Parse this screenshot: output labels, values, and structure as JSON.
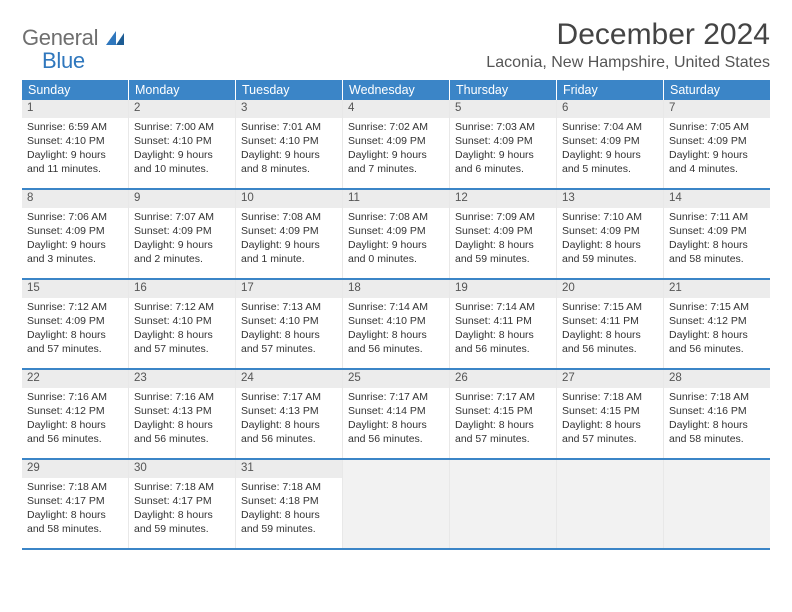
{
  "logo": {
    "line1": "General",
    "line2": "Blue"
  },
  "title": {
    "month": "December 2024",
    "location": "Laconia, New Hampshire, United States"
  },
  "colors": {
    "header_bg": "#3b85c7",
    "header_text": "#ffffff",
    "row_border": "#3b85c7",
    "daynum_bg": "#ececec",
    "daynum_text": "#555555",
    "cell_border": "#e8e8e8",
    "empty_bg": "#f2f2f2",
    "body_text": "#333333",
    "logo_gray": "#6f6f6f",
    "logo_blue": "#2f77bd"
  },
  "dow": [
    "Sunday",
    "Monday",
    "Tuesday",
    "Wednesday",
    "Thursday",
    "Friday",
    "Saturday"
  ],
  "weeks": [
    [
      {
        "num": "1",
        "sunrise": "Sunrise: 6:59 AM",
        "sunset": "Sunset: 4:10 PM",
        "daylight": "Daylight: 9 hours and 11 minutes."
      },
      {
        "num": "2",
        "sunrise": "Sunrise: 7:00 AM",
        "sunset": "Sunset: 4:10 PM",
        "daylight": "Daylight: 9 hours and 10 minutes."
      },
      {
        "num": "3",
        "sunrise": "Sunrise: 7:01 AM",
        "sunset": "Sunset: 4:10 PM",
        "daylight": "Daylight: 9 hours and 8 minutes."
      },
      {
        "num": "4",
        "sunrise": "Sunrise: 7:02 AM",
        "sunset": "Sunset: 4:09 PM",
        "daylight": "Daylight: 9 hours and 7 minutes."
      },
      {
        "num": "5",
        "sunrise": "Sunrise: 7:03 AM",
        "sunset": "Sunset: 4:09 PM",
        "daylight": "Daylight: 9 hours and 6 minutes."
      },
      {
        "num": "6",
        "sunrise": "Sunrise: 7:04 AM",
        "sunset": "Sunset: 4:09 PM",
        "daylight": "Daylight: 9 hours and 5 minutes."
      },
      {
        "num": "7",
        "sunrise": "Sunrise: 7:05 AM",
        "sunset": "Sunset: 4:09 PM",
        "daylight": "Daylight: 9 hours and 4 minutes."
      }
    ],
    [
      {
        "num": "8",
        "sunrise": "Sunrise: 7:06 AM",
        "sunset": "Sunset: 4:09 PM",
        "daylight": "Daylight: 9 hours and 3 minutes."
      },
      {
        "num": "9",
        "sunrise": "Sunrise: 7:07 AM",
        "sunset": "Sunset: 4:09 PM",
        "daylight": "Daylight: 9 hours and 2 minutes."
      },
      {
        "num": "10",
        "sunrise": "Sunrise: 7:08 AM",
        "sunset": "Sunset: 4:09 PM",
        "daylight": "Daylight: 9 hours and 1 minute."
      },
      {
        "num": "11",
        "sunrise": "Sunrise: 7:08 AM",
        "sunset": "Sunset: 4:09 PM",
        "daylight": "Daylight: 9 hours and 0 minutes."
      },
      {
        "num": "12",
        "sunrise": "Sunrise: 7:09 AM",
        "sunset": "Sunset: 4:09 PM",
        "daylight": "Daylight: 8 hours and 59 minutes."
      },
      {
        "num": "13",
        "sunrise": "Sunrise: 7:10 AM",
        "sunset": "Sunset: 4:09 PM",
        "daylight": "Daylight: 8 hours and 59 minutes."
      },
      {
        "num": "14",
        "sunrise": "Sunrise: 7:11 AM",
        "sunset": "Sunset: 4:09 PM",
        "daylight": "Daylight: 8 hours and 58 minutes."
      }
    ],
    [
      {
        "num": "15",
        "sunrise": "Sunrise: 7:12 AM",
        "sunset": "Sunset: 4:09 PM",
        "daylight": "Daylight: 8 hours and 57 minutes."
      },
      {
        "num": "16",
        "sunrise": "Sunrise: 7:12 AM",
        "sunset": "Sunset: 4:10 PM",
        "daylight": "Daylight: 8 hours and 57 minutes."
      },
      {
        "num": "17",
        "sunrise": "Sunrise: 7:13 AM",
        "sunset": "Sunset: 4:10 PM",
        "daylight": "Daylight: 8 hours and 57 minutes."
      },
      {
        "num": "18",
        "sunrise": "Sunrise: 7:14 AM",
        "sunset": "Sunset: 4:10 PM",
        "daylight": "Daylight: 8 hours and 56 minutes."
      },
      {
        "num": "19",
        "sunrise": "Sunrise: 7:14 AM",
        "sunset": "Sunset: 4:11 PM",
        "daylight": "Daylight: 8 hours and 56 minutes."
      },
      {
        "num": "20",
        "sunrise": "Sunrise: 7:15 AM",
        "sunset": "Sunset: 4:11 PM",
        "daylight": "Daylight: 8 hours and 56 minutes."
      },
      {
        "num": "21",
        "sunrise": "Sunrise: 7:15 AM",
        "sunset": "Sunset: 4:12 PM",
        "daylight": "Daylight: 8 hours and 56 minutes."
      }
    ],
    [
      {
        "num": "22",
        "sunrise": "Sunrise: 7:16 AM",
        "sunset": "Sunset: 4:12 PM",
        "daylight": "Daylight: 8 hours and 56 minutes."
      },
      {
        "num": "23",
        "sunrise": "Sunrise: 7:16 AM",
        "sunset": "Sunset: 4:13 PM",
        "daylight": "Daylight: 8 hours and 56 minutes."
      },
      {
        "num": "24",
        "sunrise": "Sunrise: 7:17 AM",
        "sunset": "Sunset: 4:13 PM",
        "daylight": "Daylight: 8 hours and 56 minutes."
      },
      {
        "num": "25",
        "sunrise": "Sunrise: 7:17 AM",
        "sunset": "Sunset: 4:14 PM",
        "daylight": "Daylight: 8 hours and 56 minutes."
      },
      {
        "num": "26",
        "sunrise": "Sunrise: 7:17 AM",
        "sunset": "Sunset: 4:15 PM",
        "daylight": "Daylight: 8 hours and 57 minutes."
      },
      {
        "num": "27",
        "sunrise": "Sunrise: 7:18 AM",
        "sunset": "Sunset: 4:15 PM",
        "daylight": "Daylight: 8 hours and 57 minutes."
      },
      {
        "num": "28",
        "sunrise": "Sunrise: 7:18 AM",
        "sunset": "Sunset: 4:16 PM",
        "daylight": "Daylight: 8 hours and 58 minutes."
      }
    ],
    [
      {
        "num": "29",
        "sunrise": "Sunrise: 7:18 AM",
        "sunset": "Sunset: 4:17 PM",
        "daylight": "Daylight: 8 hours and 58 minutes."
      },
      {
        "num": "30",
        "sunrise": "Sunrise: 7:18 AM",
        "sunset": "Sunset: 4:17 PM",
        "daylight": "Daylight: 8 hours and 59 minutes."
      },
      {
        "num": "31",
        "sunrise": "Sunrise: 7:18 AM",
        "sunset": "Sunset: 4:18 PM",
        "daylight": "Daylight: 8 hours and 59 minutes."
      },
      {
        "empty": true
      },
      {
        "empty": true
      },
      {
        "empty": true
      },
      {
        "empty": true
      }
    ]
  ]
}
